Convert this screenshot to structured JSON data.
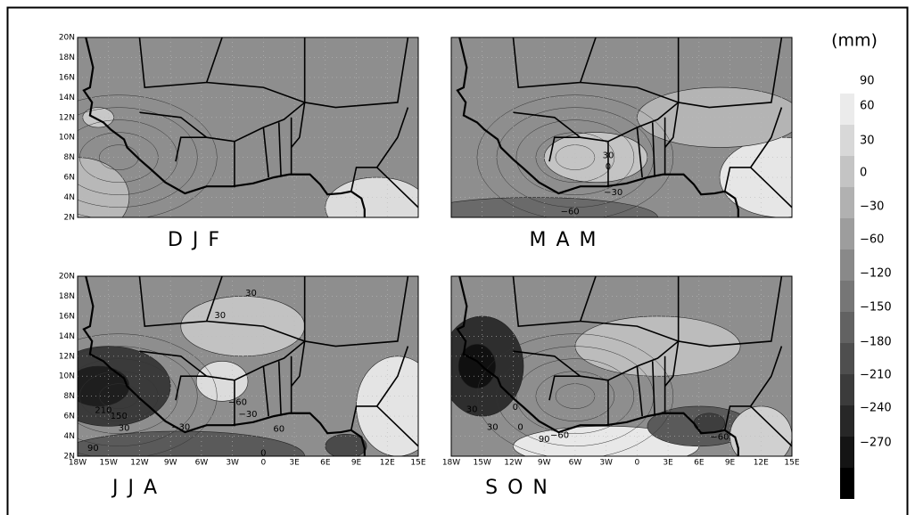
{
  "x_axis_labels": [
    "18W",
    "15W",
    "12W",
    "9W",
    "6W",
    "3W",
    "0",
    "3E",
    "6E",
    "9E",
    "12E",
    "15E"
  ],
  "y_axis_labels": [
    "20N",
    "18N",
    "16N",
    "14N",
    "12N",
    "10N",
    "8N",
    "6N",
    "4N",
    "2N"
  ],
  "colorbar": {
    "unit": "(mm)",
    "labels": [
      "90",
      "60",
      "30",
      "0",
      "−30",
      "−60",
      "−120",
      "−150",
      "−180",
      "−210",
      "−240",
      "−270"
    ]
  },
  "panels": [
    {
      "label": "D J F"
    },
    {
      "label": "M A M",
      "contour_labels": [
        "30",
        "0",
        "−30",
        "−60"
      ]
    },
    {
      "label": "J J A",
      "contour_labels": [
        "30",
        "30",
        "−60",
        "−30",
        "210",
        "150",
        "30",
        "90",
        "−30",
        "60",
        "0"
      ]
    },
    {
      "label": "S O N",
      "contour_labels": [
        "30",
        "0",
        "30",
        "0",
        "90",
        "−60",
        "−60"
      ]
    }
  ]
}
